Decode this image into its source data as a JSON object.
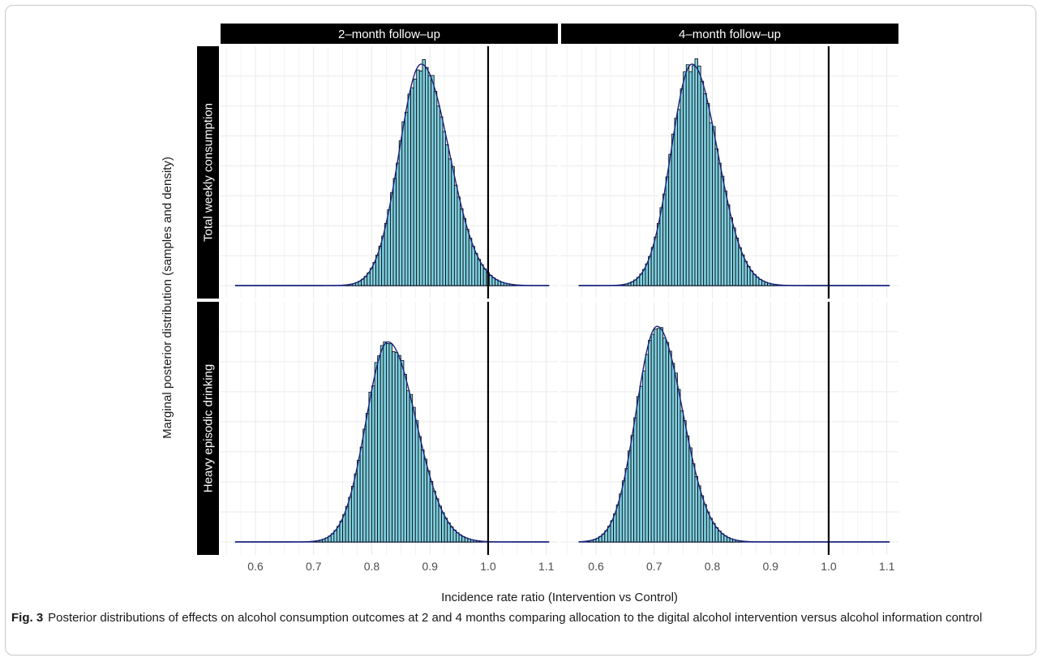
{
  "caption": {
    "label": "Fig. 3",
    "text": "Posterior distributions of effects on alcohol consumption outcomes at 2 and 4 months comparing allocation to the digital alcohol intervention versus alcohol information control"
  },
  "colors": {
    "bar_fill": "#7ecfe0",
    "bar_stroke": "#000000",
    "density_line": "#1a237e",
    "reference_line": "#000000",
    "strip_background": "#000000",
    "gridline": "#ebebeb"
  },
  "chart_data": {
    "type": "histogram",
    "xlabel": "Incidence rate ratio (Intervention vs Control)",
    "ylabel": "Marginal posterior distribution (samples and density)",
    "xlim": [
      0.54,
      1.12
    ],
    "x_ticks": [
      0.6,
      0.7,
      0.8,
      0.9,
      1.0,
      1.1
    ],
    "x_tick_labels": [
      "0.6",
      "0.7",
      "0.8",
      "0.9",
      "1.0",
      "1.1"
    ],
    "reference_line_x": 1.0,
    "columns": [
      "2–month follow–up",
      "4–month follow–up"
    ],
    "rows": [
      "Total weekly consumption",
      "Heavy episodic drinking"
    ],
    "grid": true,
    "panels": [
      {
        "row": 0,
        "col": 0,
        "x_min": 0.565,
        "x_max": 1.105,
        "mode": 0.885,
        "sd": 0.043,
        "skew": 0.12,
        "peak_rel": 1.0
      },
      {
        "row": 0,
        "col": 1,
        "x_min": 0.57,
        "x_max": 1.105,
        "mode": 0.765,
        "sd": 0.04,
        "skew": 0.1,
        "peak_rel": 1.0
      },
      {
        "row": 1,
        "col": 0,
        "x_min": 0.565,
        "x_max": 1.105,
        "mode": 0.828,
        "sd": 0.043,
        "skew": 0.12,
        "peak_rel": 0.9
      },
      {
        "row": 1,
        "col": 1,
        "x_min": 0.57,
        "x_max": 1.105,
        "mode": 0.705,
        "sd": 0.04,
        "skew": 0.1,
        "peak_rel": 0.97
      }
    ]
  }
}
